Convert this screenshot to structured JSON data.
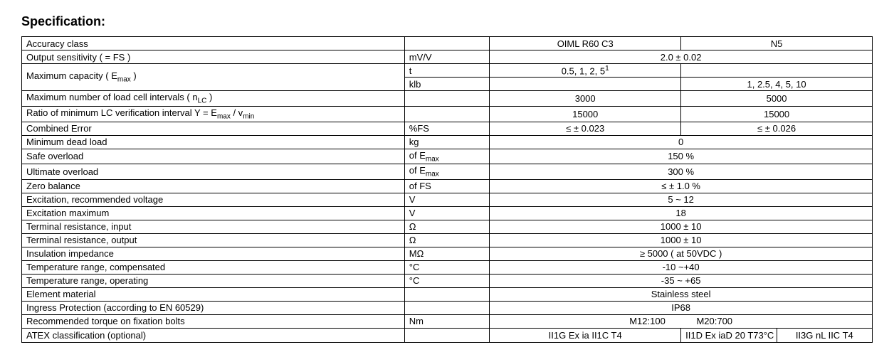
{
  "title": "Specification:",
  "rows": {
    "accuracy_class": {
      "label": "Accuracy class",
      "unit": "",
      "v1": "OIML R60 C3",
      "v2": "N5"
    },
    "output_sensitivity": {
      "label": "Output sensitivity ( = FS )",
      "unit": "mV/V",
      "merged": "2.0 ± 0.02"
    },
    "max_capacity_t": {
      "label_html": "Maximum capacity ( E<sub>max</sub> )",
      "unit": "t",
      "v1_html": "0.5, 1, 2, 5<sup>1</sup>",
      "v2": ""
    },
    "max_capacity_klb": {
      "unit": "klb",
      "v1": "",
      "v2": "1, 2.5, 4, 5, 10"
    },
    "max_intervals": {
      "label_html": "Maximum number of load cell intervals ( n<sub>LC</sub> )",
      "unit": "",
      "v1": "3000",
      "v2": "5000"
    },
    "ratio_min_lc": {
      "label_html": "Ratio of minimum LC verification interval Y = E<sub>max</sub> / v<sub>min</sub>",
      "unit": "",
      "v1": "15000",
      "v2": "15000"
    },
    "combined_error": {
      "label": "Combined Error",
      "unit": "%FS",
      "v1": "≤ ± 0.023",
      "v2": "≤ ± 0.026"
    },
    "min_dead_load": {
      "label": "Minimum dead load",
      "unit": "kg",
      "merged": "0"
    },
    "safe_overload": {
      "label": "Safe overload",
      "unit_html": "of E<sub>max</sub>",
      "merged": "150 %"
    },
    "ultimate_overload": {
      "label": "Ultimate overload",
      "unit_html": "of E<sub>max</sub>",
      "merged": "300 %"
    },
    "zero_balance": {
      "label": "Zero balance",
      "unit": "of FS",
      "merged": "≤ ± 1.0 %"
    },
    "excitation_rec": {
      "label": "Excitation, recommended voltage",
      "unit": "V",
      "merged": "5 ~ 12"
    },
    "excitation_max": {
      "label": "Excitation maximum",
      "unit": "V",
      "merged": "18"
    },
    "term_res_in": {
      "label": "Terminal resistance, input",
      "unit": "Ω",
      "merged": "1000 ± 10"
    },
    "term_res_out": {
      "label": "Terminal resistance, output",
      "unit": "Ω",
      "merged": "1000 ± 10"
    },
    "insulation": {
      "label": "Insulation impedance",
      "unit": "MΩ",
      "merged": "≥ 5000 ( at 50VDC )"
    },
    "temp_comp": {
      "label": "Temperature range, compensated",
      "unit": "°C",
      "merged": "-10 ~+40"
    },
    "temp_op": {
      "label": "Temperature range, operating",
      "unit": "°C",
      "merged": "-35 ~ +65"
    },
    "element_material": {
      "label": "Element material",
      "unit": "",
      "merged": "Stainless steel"
    },
    "ingress": {
      "label": "Ingress Protection (according to EN 60529)",
      "unit": "",
      "merged": "IP68"
    },
    "torque": {
      "label": "Recommended torque on fixation bolts",
      "unit": "Nm",
      "merged_a": "M12:100",
      "merged_b": "M20:700"
    },
    "atex": {
      "label": "ATEX classification (optional)",
      "unit": "",
      "v1": "II1G Ex ia II1C T4",
      "v2a": "II1D Ex iaD 20 T73°C",
      "v2b": "II3G nL IIC T4"
    }
  },
  "style": {
    "font_family": "Arial, sans-serif",
    "title_fontsize": 18,
    "cell_fontsize": 13,
    "border_color": "#000000",
    "background_color": "#ffffff",
    "text_color": "#000000"
  }
}
